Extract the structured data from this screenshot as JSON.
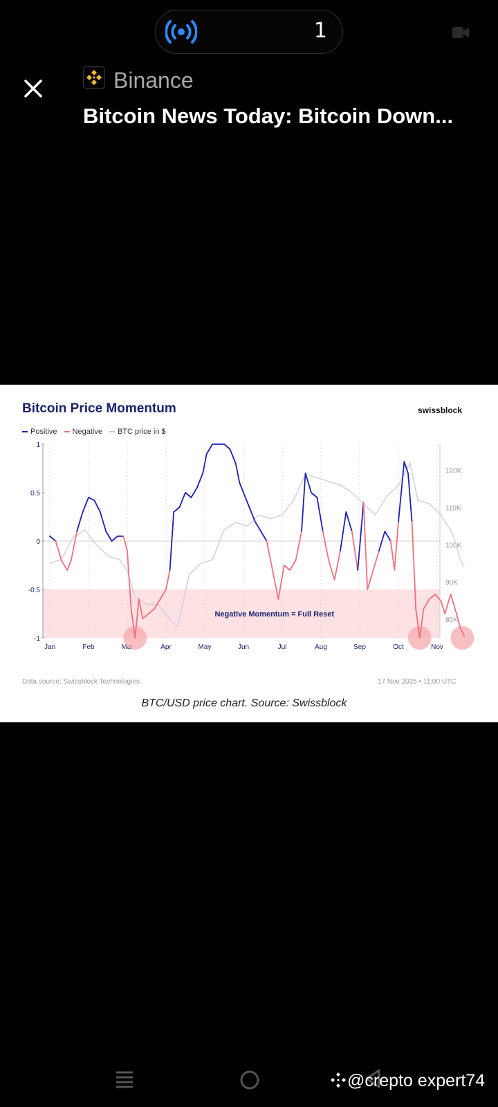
{
  "status_bar": {
    "live_count": "1"
  },
  "article": {
    "source": "Binance",
    "headline": "Bitcoin News Today: Bitcoin Down...",
    "image_caption": "BTC/USD price chart. Source: Swissblock"
  },
  "chart_meta": {
    "brand": "swissblock",
    "footer_left": "Data source: Swissblock Technologies",
    "footer_right": "17 Nov 2025 • 11:00 UTC"
  },
  "chart_data": {
    "type": "line",
    "title": "Bitcoin Price Momentum",
    "legend": [
      "Positive",
      "Negative",
      "BTC price in $"
    ],
    "annotation": "Negative Momentum = Full Reset",
    "x_ticks": [
      "Jan",
      "Feb",
      "Mar",
      "Apr",
      "May",
      "Jun",
      "Jul",
      "Aug",
      "Sep",
      "Oct",
      "Nov"
    ],
    "y_left_ticks": [
      "1",
      "0.5",
      "0",
      "-0.5",
      "-1"
    ],
    "y_left_range": [
      -1,
      1
    ],
    "y_right_ticks": [
      "120K",
      "110K",
      "100K",
      "90K",
      "80K"
    ],
    "y_right_range": [
      75000,
      127000
    ],
    "shaded_region": [
      -1,
      -0.5
    ],
    "grid": "vertical dotted",
    "colors": {
      "positive": "#1b22b5",
      "negative": "#f0707a",
      "price": "#cfcfd6",
      "shade": "#fde1e3"
    },
    "momentum": [
      [
        0,
        0.05
      ],
      [
        0.15,
        0
      ],
      [
        0.3,
        -0.2
      ],
      [
        0.45,
        -0.3
      ],
      [
        0.55,
        -0.2
      ],
      [
        0.7,
        0.1
      ],
      [
        0.85,
        0.3
      ],
      [
        1.0,
        0.45
      ],
      [
        1.15,
        0.42
      ],
      [
        1.3,
        0.3
      ],
      [
        1.45,
        0.1
      ],
      [
        1.6,
        0.0
      ],
      [
        1.75,
        0.05
      ],
      [
        1.9,
        0.05
      ],
      [
        2.0,
        -0.1
      ],
      [
        2.1,
        -0.7
      ],
      [
        2.2,
        -1.0
      ],
      [
        2.3,
        -0.6
      ],
      [
        2.4,
        -0.8
      ],
      [
        2.55,
        -0.75
      ],
      [
        2.7,
        -0.7
      ],
      [
        2.85,
        -0.6
      ],
      [
        3.0,
        -0.5
      ],
      [
        3.1,
        -0.3
      ],
      [
        3.2,
        0.3
      ],
      [
        3.35,
        0.35
      ],
      [
        3.5,
        0.5
      ],
      [
        3.65,
        0.45
      ],
      [
        3.8,
        0.55
      ],
      [
        3.95,
        0.7
      ],
      [
        4.05,
        0.9
      ],
      [
        4.2,
        1.0
      ],
      [
        4.35,
        1.0
      ],
      [
        4.5,
        1.0
      ],
      [
        4.65,
        0.95
      ],
      [
        4.8,
        0.8
      ],
      [
        4.9,
        0.6
      ],
      [
        5.0,
        0.5
      ],
      [
        5.15,
        0.35
      ],
      [
        5.3,
        0.2
      ],
      [
        5.45,
        0.1
      ],
      [
        5.6,
        0.0
      ],
      [
        5.75,
        -0.3
      ],
      [
        5.9,
        -0.6
      ],
      [
        6.05,
        -0.25
      ],
      [
        6.2,
        -0.3
      ],
      [
        6.35,
        -0.2
      ],
      [
        6.5,
        0.1
      ],
      [
        6.6,
        0.7
      ],
      [
        6.75,
        0.5
      ],
      [
        6.9,
        0.45
      ],
      [
        7.05,
        0.1
      ],
      [
        7.2,
        -0.2
      ],
      [
        7.35,
        -0.4
      ],
      [
        7.5,
        -0.1
      ],
      [
        7.65,
        0.3
      ],
      [
        7.8,
        0.1
      ],
      [
        7.95,
        -0.3
      ],
      [
        8.1,
        0.4
      ],
      [
        8.2,
        -0.5
      ],
      [
        8.35,
        -0.3
      ],
      [
        8.5,
        -0.1
      ],
      [
        8.65,
        0.1
      ],
      [
        8.8,
        0.0
      ],
      [
        8.9,
        -0.3
      ],
      [
        9.0,
        0.2
      ],
      [
        9.15,
        0.82
      ],
      [
        9.25,
        0.7
      ],
      [
        9.35,
        0.2
      ],
      [
        9.45,
        -0.7
      ],
      [
        9.55,
        -1.0
      ],
      [
        9.65,
        -0.7
      ],
      [
        9.8,
        -0.6
      ],
      [
        9.95,
        -0.55
      ],
      [
        10.1,
        -0.62
      ],
      [
        10.2,
        -0.75
      ],
      [
        10.35,
        -0.55
      ],
      [
        10.5,
        -0.75
      ],
      [
        10.6,
        -0.9
      ],
      [
        10.7,
        -0.98
      ]
    ],
    "btc_price": [
      [
        0,
        95000
      ],
      [
        0.3,
        96000
      ],
      [
        0.6,
        102000
      ],
      [
        0.9,
        104000
      ],
      [
        1.2,
        100000
      ],
      [
        1.5,
        97000
      ],
      [
        1.8,
        96000
      ],
      [
        2.0,
        93000
      ],
      [
        2.2,
        86000
      ],
      [
        2.5,
        84000
      ],
      [
        2.8,
        84000
      ],
      [
        3.1,
        80000
      ],
      [
        3.3,
        78000
      ],
      [
        3.6,
        92000
      ],
      [
        3.9,
        95000
      ],
      [
        4.2,
        96000
      ],
      [
        4.5,
        104000
      ],
      [
        4.8,
        106000
      ],
      [
        5.1,
        105000
      ],
      [
        5.4,
        108000
      ],
      [
        5.7,
        107000
      ],
      [
        6.0,
        108000
      ],
      [
        6.3,
        112000
      ],
      [
        6.6,
        119000
      ],
      [
        6.9,
        118000
      ],
      [
        7.2,
        117000
      ],
      [
        7.5,
        116000
      ],
      [
        7.8,
        114000
      ],
      [
        8.1,
        111000
      ],
      [
        8.4,
        108000
      ],
      [
        8.7,
        113000
      ],
      [
        9.0,
        116000
      ],
      [
        9.3,
        122000
      ],
      [
        9.5,
        112000
      ],
      [
        9.8,
        111000
      ],
      [
        10.1,
        108000
      ],
      [
        10.4,
        103000
      ],
      [
        10.6,
        96000
      ],
      [
        10.7,
        94000
      ]
    ],
    "reset_markers": [
      2.2,
      9.55,
      10.65
    ]
  },
  "nav": {
    "watermark": "@crepto expert74"
  }
}
